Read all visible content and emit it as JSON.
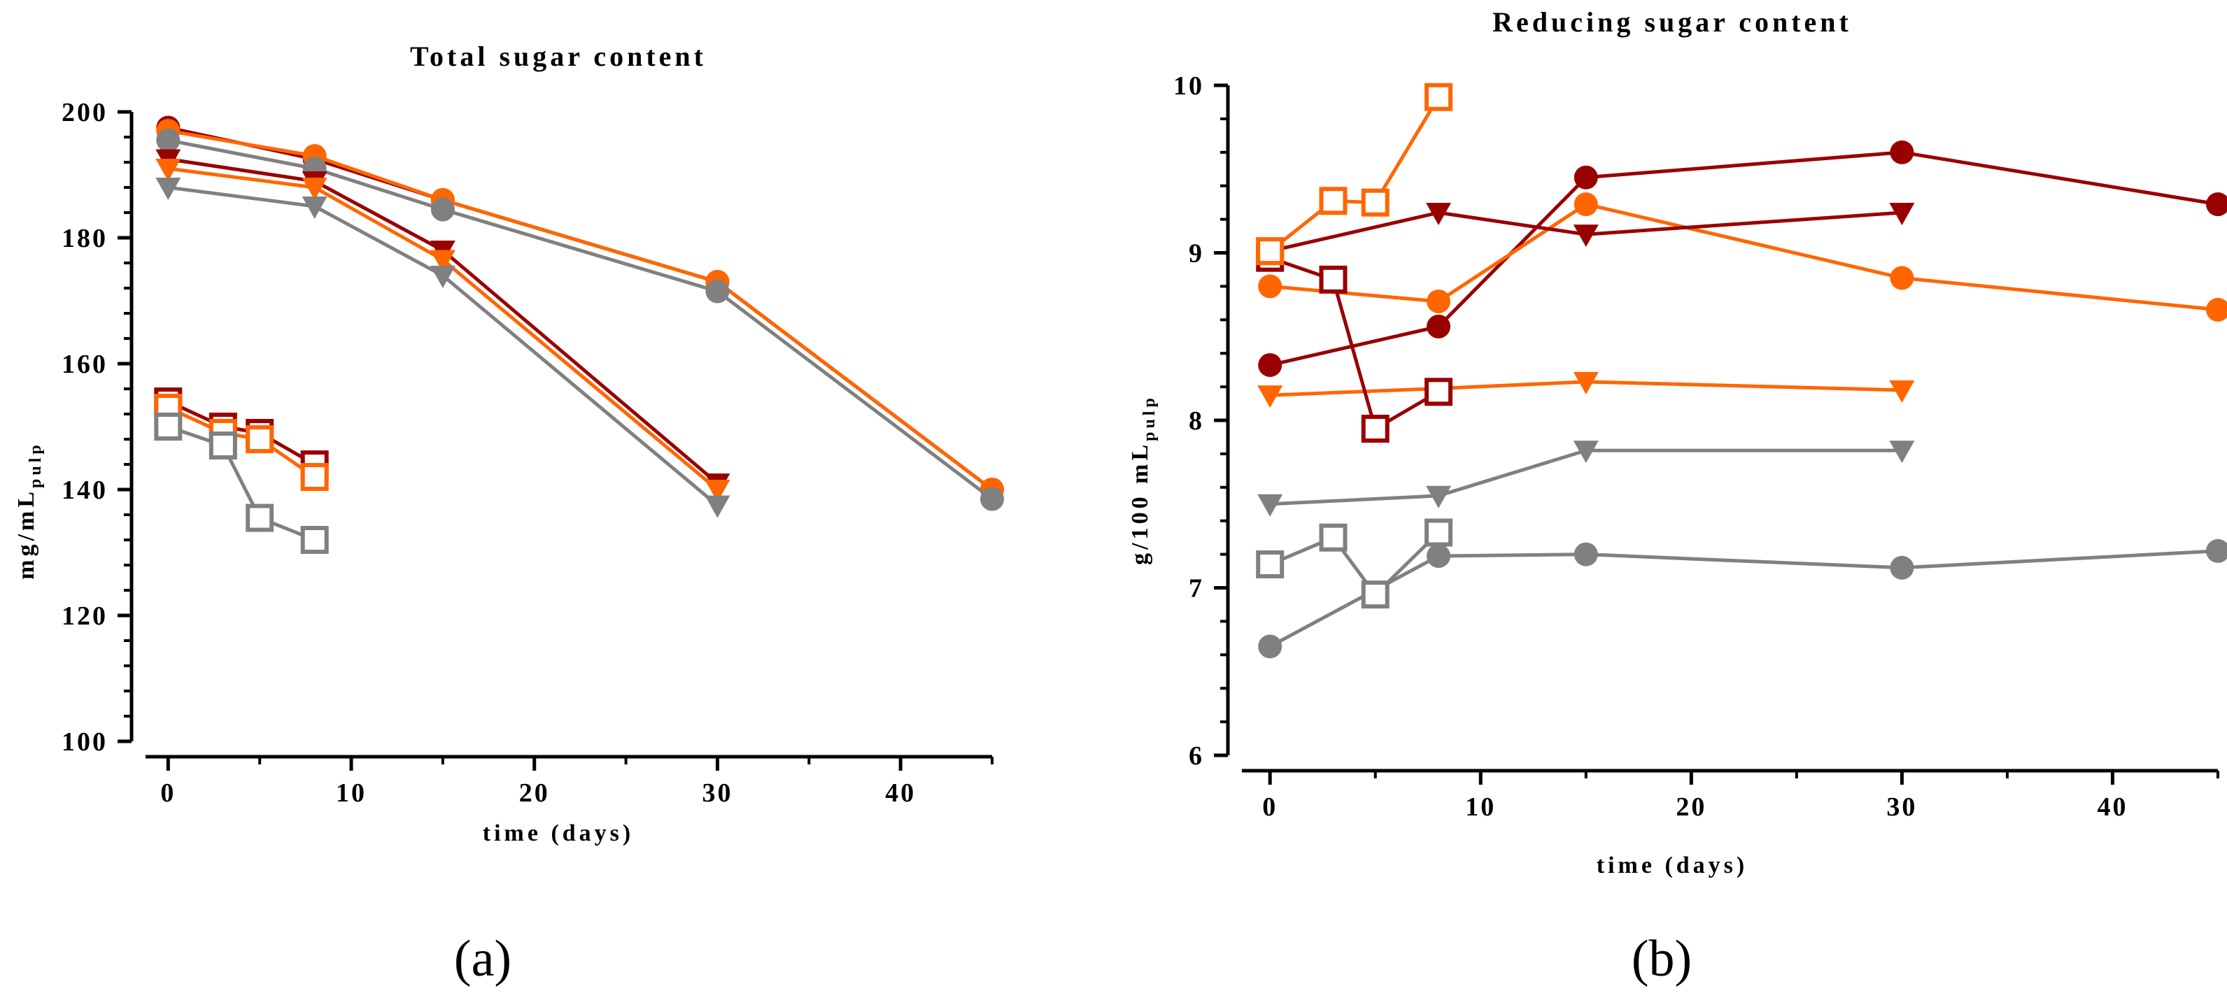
{
  "chart_data": [
    {
      "panel": "(a)",
      "type": "line",
      "title": "Total sugar content",
      "xlabel": "time (days)",
      "ylabel": "mg/mL",
      "ylabel_sub": "pulp",
      "xlim": [
        -2,
        45
      ],
      "ylim": [
        100,
        200
      ],
      "xticks": [
        0,
        10,
        20,
        30,
        40
      ],
      "yticks": [
        100,
        120,
        140,
        160,
        180,
        200
      ],
      "series": [
        {
          "name": "dark red circle",
          "color": "#990000",
          "marker": "circle",
          "x": [
            0,
            8,
            15,
            30,
            45
          ],
          "y": [
            197.5,
            192.5,
            186,
            173,
            140
          ]
        },
        {
          "name": "orange circle",
          "color": "#FF6600",
          "marker": "circle",
          "x": [
            0,
            8,
            15,
            30,
            45
          ],
          "y": [
            197,
            193,
            186,
            173,
            140
          ]
        },
        {
          "name": "grey circle",
          "color": "#808080",
          "marker": "circle",
          "x": [
            0,
            8,
            15,
            30,
            45
          ],
          "y": [
            195.5,
            191,
            184.5,
            171.5,
            138.5
          ]
        },
        {
          "name": "dark red triangle",
          "color": "#990000",
          "marker": "triangle",
          "x": [
            0,
            8,
            15,
            30
          ],
          "y": [
            192.5,
            189,
            178,
            141
          ]
        },
        {
          "name": "orange triangle",
          "color": "#FF6600",
          "marker": "triangle",
          "x": [
            0,
            8,
            15,
            30
          ],
          "y": [
            191,
            188,
            176.5,
            140
          ]
        },
        {
          "name": "grey triangle",
          "color": "#808080",
          "marker": "triangle",
          "x": [
            0,
            8,
            15,
            30
          ],
          "y": [
            188,
            185,
            174,
            137.5
          ]
        },
        {
          "name": "dark red square",
          "color": "#990000",
          "marker": "square",
          "x": [
            0,
            3,
            5,
            8
          ],
          "y": [
            154,
            150,
            149,
            144
          ]
        },
        {
          "name": "orange square",
          "color": "#FF6600",
          "marker": "square",
          "x": [
            0,
            3,
            5,
            8
          ],
          "y": [
            153,
            149,
            148,
            142
          ]
        },
        {
          "name": "grey square",
          "color": "#808080",
          "marker": "square",
          "x": [
            0,
            3,
            5,
            8
          ],
          "y": [
            150,
            147,
            135.5,
            132
          ]
        }
      ]
    },
    {
      "panel": "(b)",
      "type": "line",
      "title": "Reducing sugar content",
      "xlabel": "time (days)",
      "ylabel": "g/100 mL",
      "ylabel_sub": "pulp",
      "xlim": [
        -2,
        45
      ],
      "ylim": [
        6,
        10
      ],
      "xticks": [
        0,
        10,
        20,
        30,
        40
      ],
      "yticks": [
        6,
        7,
        8,
        9,
        10
      ],
      "series": [
        {
          "name": "dark red circle",
          "color": "#990000",
          "marker": "circle",
          "x": [
            0,
            8,
            15,
            30,
            45
          ],
          "y": [
            8.33,
            8.56,
            9.45,
            9.6,
            9.29
          ]
        },
        {
          "name": "orange circle",
          "color": "#FF6600",
          "marker": "circle",
          "x": [
            0,
            8,
            15,
            30,
            45
          ],
          "y": [
            8.8,
            8.71,
            9.29,
            8.85,
            8.66
          ]
        },
        {
          "name": "grey circle",
          "color": "#808080",
          "marker": "circle",
          "x": [
            0,
            8,
            15,
            30,
            45
          ],
          "y": [
            6.65,
            7.19,
            7.2,
            7.12,
            7.22
          ]
        },
        {
          "name": "dark red triangle",
          "color": "#990000",
          "marker": "triangle",
          "x": [
            0,
            8,
            15,
            30
          ],
          "y": [
            9.01,
            9.24,
            9.11,
            9.24
          ]
        },
        {
          "name": "orange triangle",
          "color": "#FF6600",
          "marker": "triangle",
          "x": [
            0,
            8,
            15,
            30
          ],
          "y": [
            8.15,
            8.19,
            8.23,
            8.18
          ]
        },
        {
          "name": "grey triangle",
          "color": "#808080",
          "marker": "triangle",
          "x": [
            0,
            8,
            15,
            30
          ],
          "y": [
            7.5,
            7.55,
            7.82,
            7.82
          ]
        },
        {
          "name": "dark red square",
          "color": "#990000",
          "marker": "square",
          "x": [
            0,
            3,
            5,
            8
          ],
          "y": [
            8.97,
            8.84,
            7.95,
            8.17
          ]
        },
        {
          "name": "orange square",
          "color": "#FF6600",
          "marker": "square",
          "x": [
            0,
            3,
            5,
            8
          ],
          "y": [
            9.01,
            9.31,
            9.3,
            9.93
          ]
        },
        {
          "name": "grey square",
          "color": "#808080",
          "marker": "square",
          "x": [
            0,
            3,
            5,
            8
          ],
          "y": [
            7.14,
            7.3,
            6.96,
            7.33
          ]
        }
      ]
    }
  ]
}
